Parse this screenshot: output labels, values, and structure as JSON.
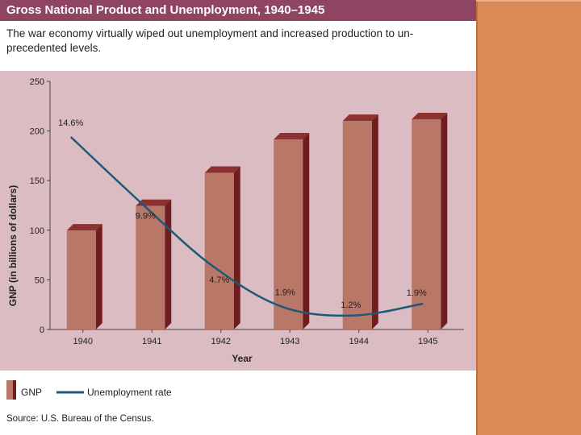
{
  "header": {
    "title": "Gross National Product and Unemployment, 1940–1945",
    "caption": "The war economy virtually wiped out unemployment and increased production to un-precedented levels."
  },
  "legend": {
    "gnp_label": "GNP",
    "rate_label": "Unemployment rate"
  },
  "source": "Source: U.S. Bureau of the Census.",
  "colors": {
    "title_bg": "#8f4461",
    "panel_bg": "#dbbcc3",
    "bar_front": "#b97767",
    "bar_side": "#6f1d1f",
    "bar_top": "#8c3231",
    "line": "#1c5a78",
    "side_panel": "#da8a57"
  },
  "chart_data": {
    "type": "bar",
    "title": "Gross National Product and Unemployment, 1940–1945",
    "xlabel": "Year",
    "ylabel": "GNP (in billions of dollars)",
    "ylim": [
      0,
      250
    ],
    "yticks": [
      "0",
      "50",
      "100",
      "150",
      "200",
      "250"
    ],
    "categories": [
      "1940",
      "1941",
      "1942",
      "1943",
      "1944",
      "1945"
    ],
    "series": [
      {
        "name": "GNP",
        "kind": "bar",
        "values": [
          99.7,
          124.5,
          157.9,
          191.6,
          210.1,
          211.9
        ]
      },
      {
        "name": "Unemployment rate",
        "kind": "line",
        "unit": "%",
        "values": [
          14.6,
          9.9,
          4.7,
          1.9,
          1.2,
          1.9
        ],
        "labels": [
          "14.6%",
          "9.9%",
          "4.7%",
          "1.9%",
          "1.2%",
          "1.9%"
        ],
        "plotted_on_gnp_axis": [
          194,
          128,
          65,
          23,
          14,
          26
        ]
      }
    ]
  }
}
